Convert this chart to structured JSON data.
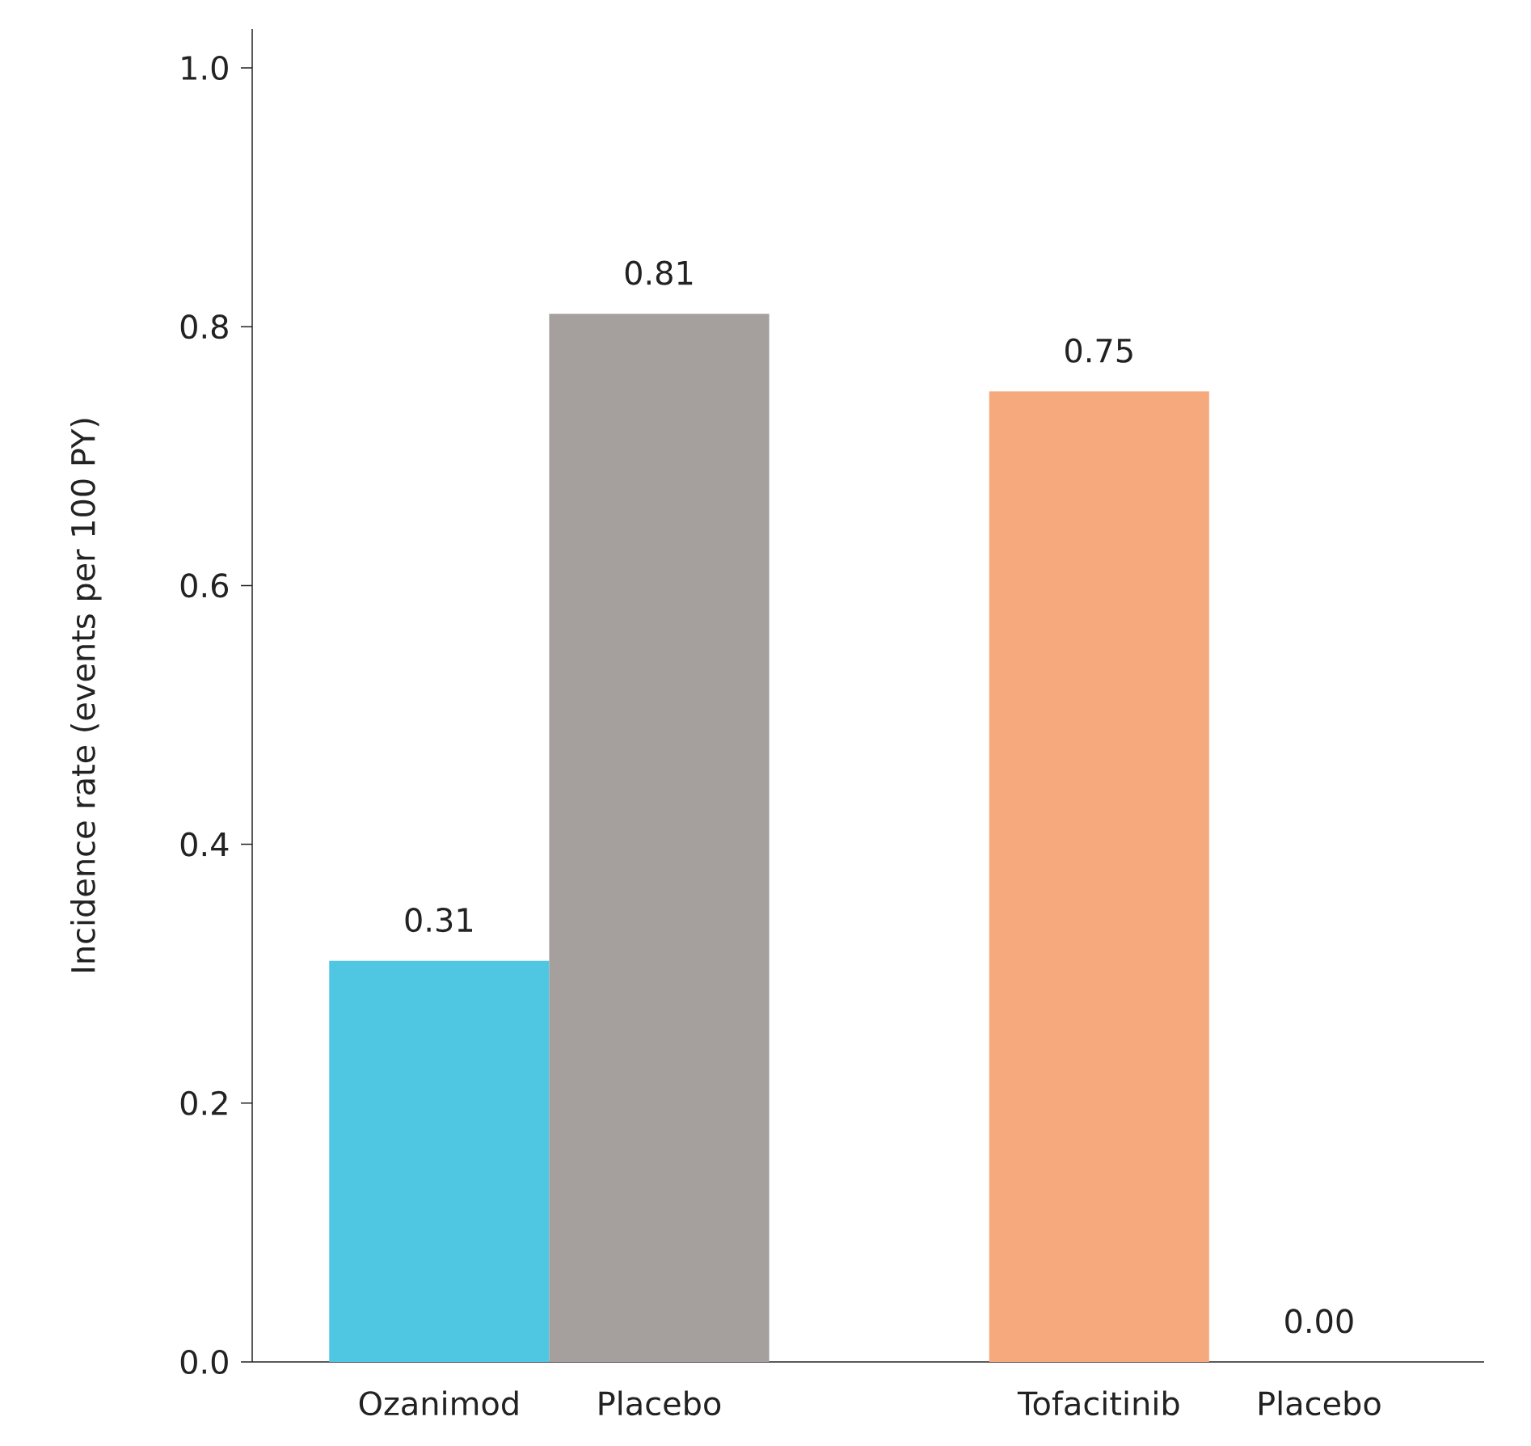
{
  "chart_data": {
    "type": "bar",
    "ylabel": "Incidence rate (events per 100 PY)",
    "categories": [
      "Ozanimod",
      "Placebo",
      null,
      "Tofacitinib",
      "Placebo"
    ],
    "values": [
      0.31,
      0.81,
      null,
      0.75,
      0.0
    ],
    "colors": [
      "#4fc7e3",
      "#a59f9e",
      null,
      "#f7a97e",
      null
    ],
    "value_labels": [
      "0.31",
      "0.81",
      null,
      "0.75",
      "0.00"
    ],
    "ylim": [
      0,
      1.03
    ],
    "yticks": [
      {
        "value": 0,
        "label": "0.0"
      },
      {
        "value": 0.2,
        "label": "0.2"
      },
      {
        "value": 0.4,
        "label": "0.4"
      },
      {
        "value": 0.6,
        "label": "0.6"
      },
      {
        "value": 0.8,
        "label": "0.8"
      },
      {
        "value": 1.0,
        "label": "1.0"
      }
    ],
    "grid": false
  }
}
